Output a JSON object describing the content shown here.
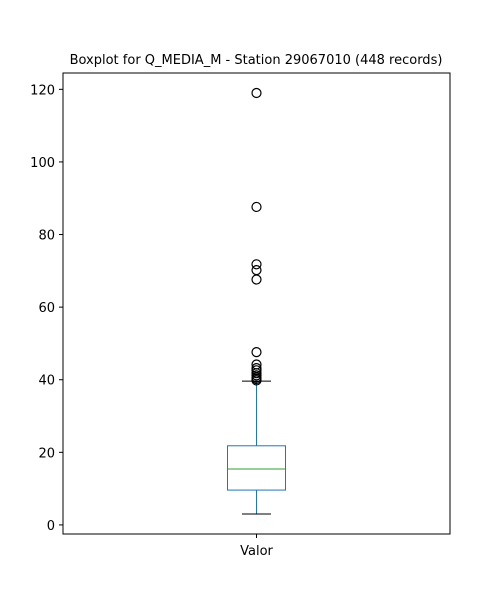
{
  "chart_data": {
    "type": "box",
    "title": "Boxplot for Q_MEDIA_M - Station 29067010 (448 records)",
    "xlabel": "",
    "ylabel": "",
    "categories": [
      "Valor"
    ],
    "ylim": [
      -2.5,
      124.5
    ],
    "yticks": [
      0,
      20,
      40,
      60,
      80,
      100,
      120
    ],
    "grid": false,
    "box": {
      "whisker_low": 3.0,
      "q1": 9.6,
      "median": 15.4,
      "q3": 21.8,
      "whisker_high": 39.6
    },
    "outliers": [
      39.8,
      40.2,
      40.6,
      41.2,
      41.8,
      42.6,
      43.2,
      44.2,
      47.6,
      67.6,
      70.2,
      71.8,
      87.6,
      119.0
    ],
    "colors": {
      "box": "#1f77b4",
      "whisker": "#1f77b4",
      "cap": "#000000",
      "median": "#2ca02c",
      "outlier": "#000000",
      "axes": "#000000"
    }
  }
}
